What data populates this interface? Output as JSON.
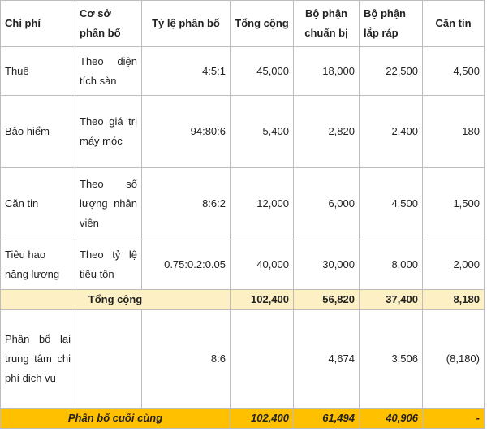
{
  "headers": {
    "chi_phi": "Chi phí",
    "co_so": "Cơ sở phân bổ",
    "ty_le": "Tỷ lệ phân bổ",
    "tong": "Tổng cộng",
    "chuan_bi": "Bộ phận chuẩn bị",
    "lap_rap": "Bộ phận lắp ráp",
    "can_tin": "Căn tin"
  },
  "rows": [
    {
      "name": "Thuê",
      "basis": "Theo diện tích sàn",
      "ratio": "4:5:1",
      "total": "45,000",
      "prep": "18,000",
      "assembly": "22,500",
      "canteen": "4,500"
    },
    {
      "name": "Bảo hiểm",
      "basis": "Theo giá trị máy móc",
      "ratio": "94:80:6",
      "total": "5,400",
      "prep": "2,820",
      "assembly": "2,400",
      "canteen": "180"
    },
    {
      "name": "Căn tin",
      "basis": "Theo số lượng nhân viên",
      "ratio": "8:6:2",
      "total": "12,000",
      "prep": "6,000",
      "assembly": "4,500",
      "canteen": "1,500"
    },
    {
      "name": "Tiêu hao năng lượng",
      "basis": "Theo tỷ lệ tiêu tốn",
      "ratio": "0.75:0.2:0.05",
      "total": "40,000",
      "prep": "30,000",
      "assembly": "8,000",
      "canteen": "2,000"
    }
  ],
  "total_row": {
    "label": "Tổng cộng",
    "total": "102,400",
    "prep": "56,820",
    "assembly": "37,400",
    "canteen": "8,180"
  },
  "realloc_row": {
    "name": "Phân bổ lại trung tâm chi phí dịch vụ",
    "basis": "",
    "ratio": "8:6",
    "total": "",
    "prep": "4,674",
    "assembly": "3,506",
    "canteen": "(8,180)"
  },
  "final_row": {
    "label": "Phân bổ cuối cùng",
    "total": "102,400",
    "prep": "61,494",
    "assembly": "40,906",
    "canteen": "-"
  },
  "colors": {
    "total_bg": "#fdf0c4",
    "final_bg": "#ffc000",
    "border": "#bdbdbd"
  }
}
